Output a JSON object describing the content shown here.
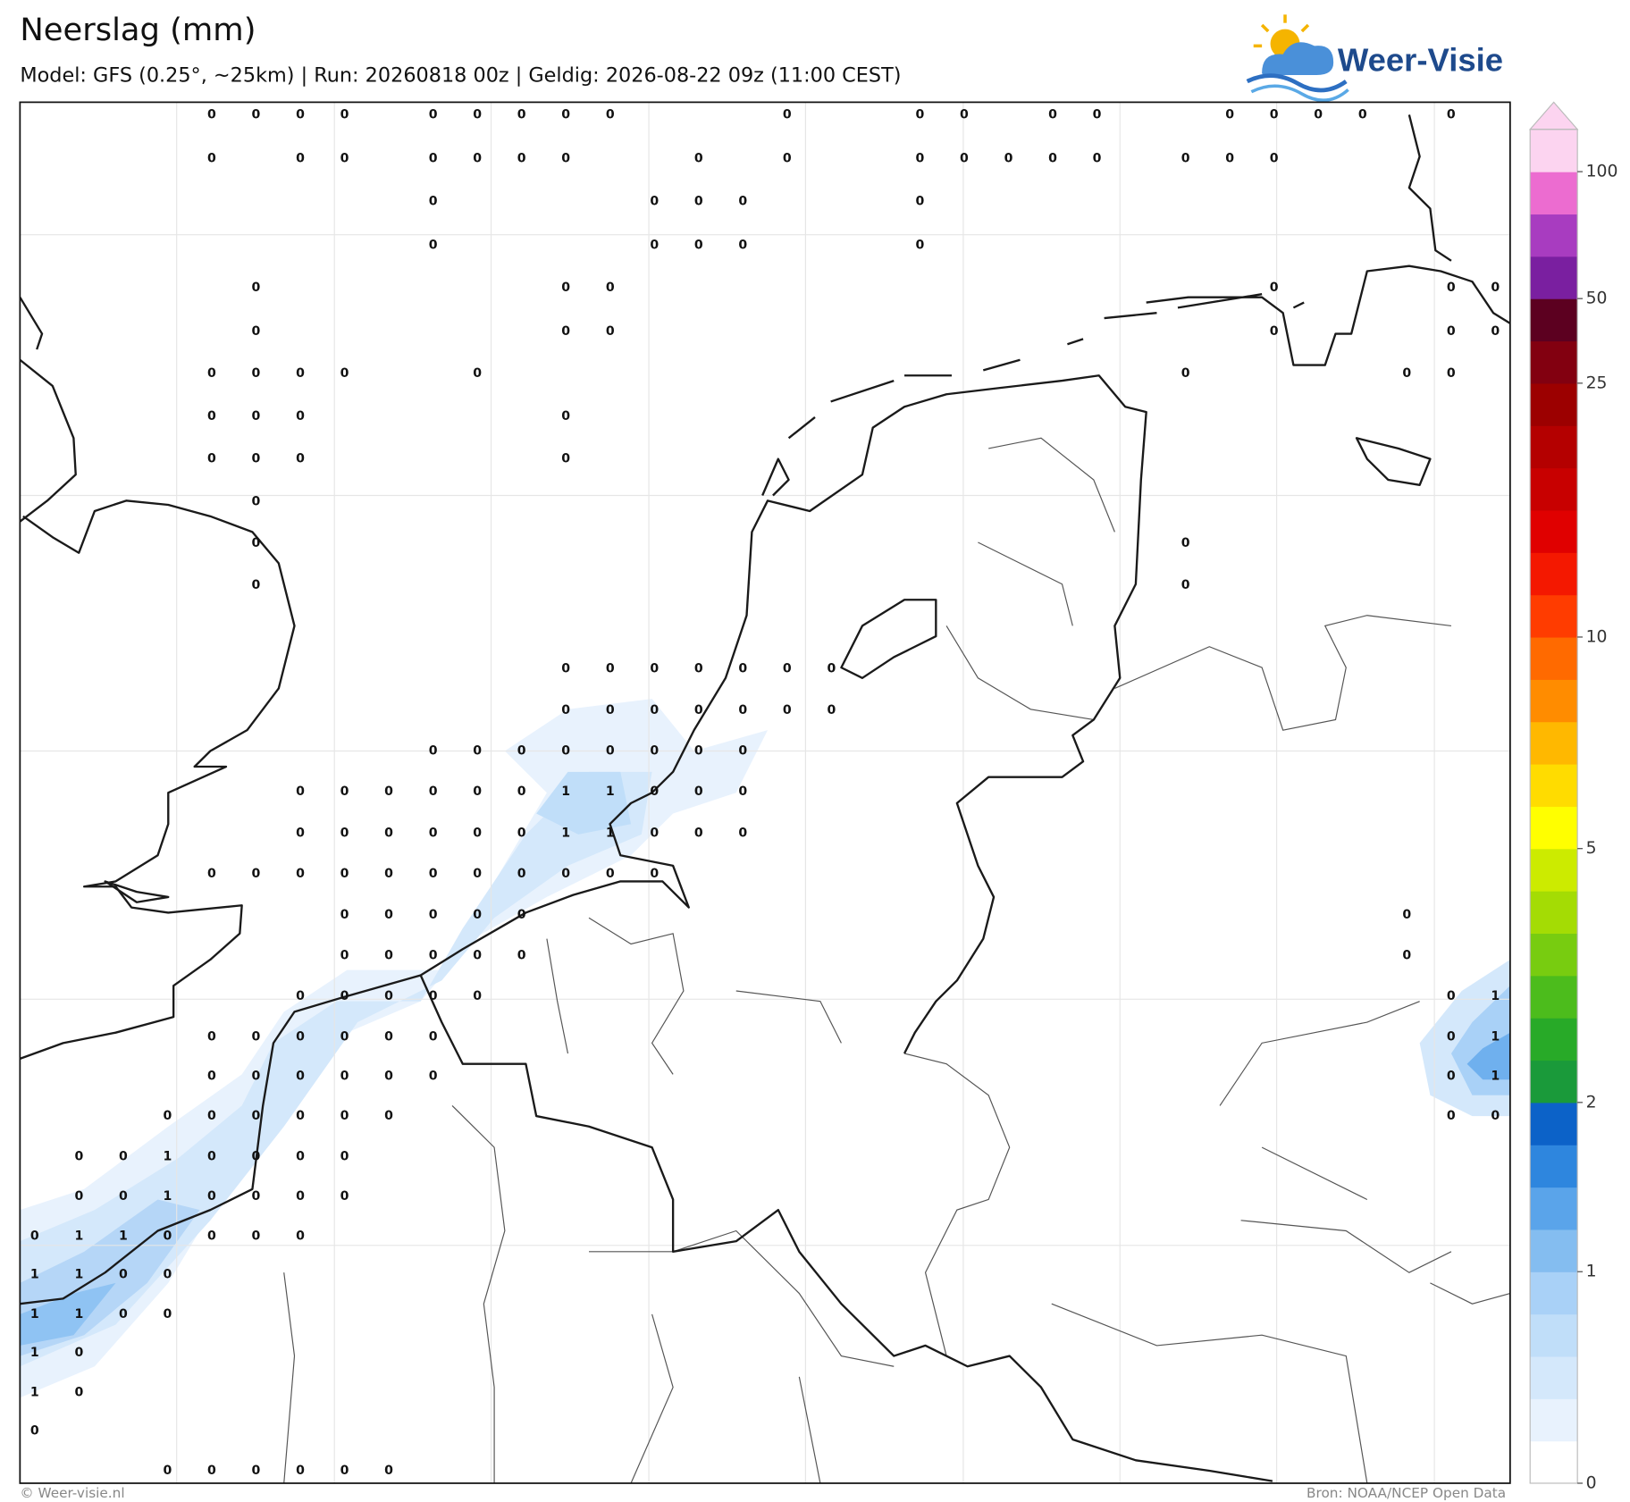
{
  "header": {
    "title": "Neerslag (mm)",
    "subtitle": "Model: GFS (0.25°, ~25km)  |  Run: 20260818 00z  |  Geldig: 2026-08-22 09z (11:00 CEST)"
  },
  "logo": "Weer-Visie",
  "precip_labels": [
    [
      null,
      null,
      null,
      null,
      0,
      0,
      0,
      0,
      null,
      0,
      0,
      0,
      0,
      0,
      null,
      null,
      null,
      0,
      null,
      null,
      0,
      0,
      null,
      0,
      0,
      null,
      null,
      0,
      0,
      0,
      0,
      null,
      0,
      null
    ],
    [
      null,
      null,
      null,
      null,
      0,
      null,
      0,
      0,
      null,
      0,
      0,
      0,
      0,
      null,
      null,
      0,
      null,
      0,
      null,
      null,
      0,
      0,
      0,
      0,
      0,
      null,
      0,
      0,
      0,
      null,
      null,
      null,
      null,
      null
    ],
    [
      null,
      null,
      null,
      null,
      null,
      null,
      null,
      null,
      null,
      0,
      null,
      null,
      null,
      null,
      0,
      0,
      0,
      null,
      null,
      null,
      0,
      null,
      null,
      null,
      null,
      null,
      null,
      null,
      null,
      null,
      null,
      null,
      null,
      null
    ],
    [
      null,
      null,
      null,
      null,
      null,
      null,
      null,
      null,
      null,
      0,
      null,
      null,
      null,
      null,
      0,
      0,
      0,
      null,
      null,
      null,
      0,
      null,
      null,
      null,
      null,
      null,
      null,
      null,
      null,
      null,
      null,
      null,
      null,
      null
    ],
    [
      null,
      null,
      null,
      null,
      null,
      0,
      null,
      null,
      null,
      null,
      null,
      null,
      0,
      0,
      null,
      null,
      null,
      null,
      null,
      null,
      null,
      null,
      null,
      null,
      null,
      null,
      null,
      null,
      0,
      null,
      null,
      null,
      0,
      0
    ],
    [
      null,
      null,
      null,
      null,
      null,
      0,
      null,
      null,
      null,
      null,
      null,
      null,
      0,
      0,
      null,
      null,
      null,
      null,
      null,
      null,
      null,
      null,
      null,
      null,
      null,
      null,
      null,
      null,
      0,
      null,
      null,
      null,
      0,
      0
    ],
    [
      null,
      null,
      null,
      null,
      0,
      0,
      0,
      0,
      null,
      null,
      0,
      null,
      null,
      null,
      null,
      null,
      null,
      null,
      null,
      null,
      null,
      null,
      null,
      null,
      null,
      null,
      0,
      null,
      null,
      null,
      null,
      0,
      0,
      null
    ],
    [
      null,
      null,
      null,
      null,
      0,
      0,
      0,
      null,
      null,
      null,
      null,
      null,
      0,
      null,
      null,
      null,
      null,
      null,
      null,
      null,
      null,
      null,
      null,
      null,
      null,
      null,
      null,
      null,
      null,
      null,
      null,
      null,
      null,
      null
    ],
    [
      null,
      null,
      null,
      null,
      0,
      0,
      0,
      null,
      null,
      null,
      null,
      null,
      0,
      null,
      null,
      null,
      null,
      null,
      null,
      null,
      null,
      null,
      null,
      null,
      null,
      null,
      null,
      null,
      null,
      null,
      null,
      null,
      null,
      null
    ],
    [
      null,
      null,
      null,
      null,
      null,
      0,
      null,
      null,
      null,
      null,
      null,
      null,
      null,
      null,
      null,
      null,
      null,
      null,
      null,
      null,
      null,
      null,
      null,
      null,
      null,
      null,
      null,
      null,
      null,
      null,
      null,
      null,
      null,
      null
    ],
    [
      null,
      null,
      null,
      null,
      null,
      0,
      null,
      null,
      null,
      null,
      null,
      null,
      null,
      null,
      null,
      null,
      null,
      null,
      null,
      null,
      null,
      null,
      null,
      null,
      null,
      null,
      0,
      null,
      null,
      null,
      null,
      null,
      null,
      null
    ],
    [
      null,
      null,
      null,
      null,
      null,
      0,
      null,
      null,
      null,
      null,
      null,
      null,
      null,
      null,
      null,
      null,
      null,
      null,
      null,
      null,
      null,
      null,
      null,
      null,
      null,
      null,
      0,
      null,
      null,
      null,
      null,
      null,
      null,
      null
    ],
    [
      null,
      null,
      null,
      null,
      null,
      null,
      null,
      null,
      null,
      null,
      null,
      null,
      null,
      null,
      null,
      null,
      null,
      null,
      null,
      null,
      null,
      null,
      null,
      null,
      null,
      null,
      null,
      null,
      null,
      null,
      null,
      null,
      null,
      null
    ],
    [
      null,
      null,
      null,
      null,
      null,
      null,
      null,
      null,
      null,
      null,
      null,
      null,
      0,
      0,
      0,
      0,
      0,
      0,
      0,
      null,
      null,
      null,
      null,
      null,
      null,
      null,
      null,
      null,
      null,
      null,
      null,
      null,
      null,
      null
    ],
    [
      null,
      null,
      null,
      null,
      null,
      null,
      null,
      null,
      null,
      null,
      null,
      null,
      0,
      0,
      0,
      0,
      0,
      0,
      0,
      null,
      null,
      null,
      null,
      null,
      null,
      null,
      null,
      null,
      null,
      null,
      null,
      null,
      null,
      null
    ],
    [
      null,
      null,
      null,
      null,
      null,
      null,
      null,
      null,
      null,
      0,
      0,
      0,
      0,
      0,
      0,
      0,
      0,
      null,
      null,
      null,
      null,
      null,
      null,
      null,
      null,
      null,
      null,
      null,
      null,
      null,
      null,
      null,
      null,
      null
    ],
    [
      null,
      null,
      null,
      null,
      null,
      null,
      0,
      0,
      0,
      0,
      0,
      0,
      1,
      1,
      0,
      0,
      0,
      null,
      null,
      null,
      null,
      null,
      null,
      null,
      null,
      null,
      null,
      null,
      null,
      null,
      null,
      null,
      null,
      null
    ],
    [
      null,
      null,
      null,
      null,
      null,
      null,
      0,
      0,
      0,
      0,
      0,
      0,
      1,
      1,
      0,
      0,
      0,
      null,
      null,
      null,
      null,
      null,
      null,
      null,
      null,
      null,
      null,
      null,
      null,
      null,
      null,
      null,
      null,
      null
    ],
    [
      null,
      null,
      null,
      null,
      0,
      0,
      0,
      0,
      0,
      0,
      0,
      0,
      0,
      0,
      0,
      null,
      null,
      null,
      null,
      null,
      null,
      null,
      null,
      null,
      null,
      null,
      null,
      null,
      null,
      null,
      null,
      null,
      null,
      null
    ],
    [
      null,
      null,
      null,
      null,
      null,
      null,
      null,
      0,
      0,
      0,
      0,
      0,
      null,
      null,
      null,
      null,
      null,
      null,
      null,
      null,
      null,
      null,
      null,
      null,
      null,
      null,
      null,
      null,
      null,
      null,
      null,
      0,
      null,
      null
    ],
    [
      null,
      null,
      null,
      null,
      null,
      null,
      null,
      0,
      0,
      0,
      0,
      0,
      null,
      null,
      null,
      null,
      null,
      null,
      null,
      null,
      null,
      null,
      null,
      null,
      null,
      null,
      null,
      null,
      null,
      null,
      null,
      0,
      null,
      null
    ],
    [
      null,
      null,
      null,
      null,
      null,
      null,
      0,
      0,
      0,
      0,
      0,
      null,
      null,
      null,
      null,
      null,
      null,
      null,
      null,
      null,
      null,
      null,
      null,
      null,
      null,
      null,
      null,
      null,
      null,
      null,
      null,
      null,
      0,
      1
    ],
    [
      null,
      null,
      null,
      null,
      0,
      0,
      0,
      0,
      0,
      0,
      null,
      null,
      null,
      null,
      null,
      null,
      null,
      null,
      null,
      null,
      null,
      null,
      null,
      null,
      null,
      null,
      null,
      null,
      null,
      null,
      null,
      null,
      0,
      1
    ],
    [
      null,
      null,
      null,
      null,
      0,
      0,
      0,
      0,
      0,
      0,
      null,
      null,
      null,
      null,
      null,
      null,
      null,
      null,
      null,
      null,
      null,
      null,
      null,
      null,
      null,
      null,
      null,
      null,
      null,
      null,
      null,
      null,
      0,
      1
    ],
    [
      null,
      null,
      null,
      0,
      0,
      0,
      0,
      0,
      0,
      null,
      null,
      null,
      null,
      null,
      null,
      null,
      null,
      null,
      null,
      null,
      null,
      null,
      null,
      null,
      null,
      null,
      null,
      null,
      null,
      null,
      null,
      null,
      0,
      0
    ],
    [
      null,
      0,
      0,
      1,
      0,
      0,
      0,
      0,
      null,
      null,
      null,
      null,
      null,
      null,
      null,
      null,
      null,
      null,
      null,
      null,
      null,
      null,
      null,
      null,
      null,
      null,
      null,
      null,
      null,
      null,
      null,
      null,
      null,
      null
    ],
    [
      null,
      0,
      0,
      1,
      0,
      0,
      0,
      0,
      null,
      null,
      null,
      null,
      null,
      null,
      null,
      null,
      null,
      null,
      null,
      null,
      null,
      null,
      null,
      null,
      null,
      null,
      null,
      null,
      null,
      null,
      null,
      null,
      null,
      null
    ],
    [
      0,
      1,
      1,
      0,
      0,
      0,
      0,
      null,
      null,
      null,
      null,
      null,
      null,
      null,
      null,
      null,
      null,
      null,
      null,
      null,
      null,
      null,
      null,
      null,
      null,
      null,
      null,
      null,
      null,
      null,
      null,
      null,
      null,
      null
    ],
    [
      1,
      1,
      0,
      0,
      null,
      null,
      null,
      null,
      null,
      null,
      null,
      null,
      null,
      null,
      null,
      null,
      null,
      null,
      null,
      null,
      null,
      null,
      null,
      null,
      null,
      null,
      null,
      null,
      null,
      null,
      null,
      null,
      null,
      null
    ],
    [
      1,
      1,
      0,
      0,
      null,
      null,
      null,
      null,
      null,
      null,
      null,
      null,
      null,
      null,
      null,
      null,
      null,
      null,
      null,
      null,
      null,
      null,
      null,
      null,
      null,
      null,
      null,
      null,
      null,
      null,
      null,
      null,
      null,
      null
    ],
    [
      1,
      0,
      null,
      null,
      null,
      null,
      null,
      null,
      null,
      null,
      null,
      null,
      null,
      null,
      null,
      null,
      null,
      null,
      null,
      null,
      null,
      null,
      null,
      null,
      null,
      null,
      null,
      null,
      null,
      null,
      null,
      null,
      null,
      null
    ],
    [
      1,
      0,
      null,
      null,
      null,
      null,
      null,
      null,
      null,
      null,
      null,
      null,
      null,
      null,
      null,
      null,
      null,
      null,
      null,
      null,
      null,
      null,
      null,
      null,
      null,
      null,
      null,
      null,
      null,
      null,
      null,
      null,
      null,
      null
    ],
    [
      0,
      null,
      null,
      null,
      null,
      null,
      null,
      null,
      null,
      null,
      null,
      null,
      null,
      null,
      null,
      null,
      null,
      null,
      null,
      null,
      null,
      null,
      null,
      null,
      null,
      null,
      null,
      null,
      null,
      null,
      null,
      null,
      null,
      null
    ],
    [
      null,
      null,
      null,
      0,
      0,
      0,
      0,
      0,
      0,
      null,
      null,
      null,
      null,
      null,
      null,
      null,
      null,
      null,
      null,
      null,
      null,
      null,
      null,
      null,
      null,
      null,
      null,
      null,
      null,
      null,
      null,
      null,
      null,
      null
    ]
  ],
  "colorbar": {
    "colors": [
      "#ffffff",
      "#e8f2fd",
      "#d4e8fb",
      "#c0def9",
      "#a9d1f7",
      "#84bdf0",
      "#5aa4ea",
      "#2e86de",
      "#0c62c8",
      "#1a9a3a",
      "#28aa28",
      "#4cbc1c",
      "#78cc10",
      "#a4dc04",
      "#cceb00",
      "#ffff00",
      "#ffdc00",
      "#ffb800",
      "#ff8c00",
      "#ff6a00",
      "#ff3c00",
      "#f41800",
      "#e00000",
      "#c80000",
      "#b40000",
      "#9c0000",
      "#820010",
      "#5c0020",
      "#7a1fa0",
      "#a83cc0",
      "#ec6cd0",
      "#fcd4f0"
    ],
    "ticks": [
      0,
      1,
      2,
      5,
      10,
      25,
      50,
      100
    ]
  },
  "footer": {
    "copyright": "© Weer-visie.nl",
    "source": "Bron: NOAA/NCEP Open Data"
  }
}
